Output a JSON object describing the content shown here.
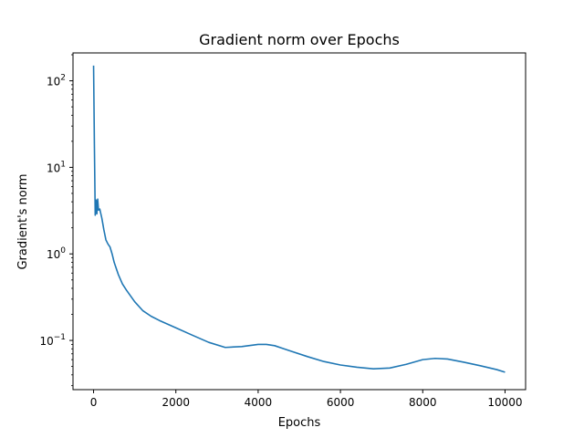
{
  "chart_data": {
    "type": "line",
    "title": "Gradient norm over Epochs",
    "xlabel": "Epochs",
    "ylabel": "Gradient's norm",
    "yscale": "log",
    "xlim": [
      -500,
      10500
    ],
    "ylim": [
      0.027,
      210
    ],
    "grid": false,
    "xticks": [
      0,
      2000,
      4000,
      6000,
      8000,
      10000
    ],
    "xtick_labels": [
      "0",
      "2000",
      "4000",
      "6000",
      "8000",
      "10000"
    ],
    "yticks": [
      0.1,
      1,
      10,
      100
    ],
    "ytick_labels": [
      {
        "base": "10",
        "exp": "−1"
      },
      {
        "base": "10",
        "exp": "0"
      },
      {
        "base": "10",
        "exp": "1"
      },
      {
        "base": "10",
        "exp": "2"
      }
    ],
    "line_color": "#1f77b4",
    "series": [
      {
        "x": [
          0,
          20,
          40,
          60,
          80,
          100,
          120,
          150,
          200,
          250,
          300,
          350,
          400,
          450,
          500,
          600,
          700,
          800,
          1000,
          1200,
          1400,
          1600,
          2000,
          2400,
          2800,
          3200,
          3600,
          4000,
          4200,
          4400,
          4800,
          5200,
          5600,
          6000,
          6400,
          6800,
          7200,
          7600,
          8000,
          8300,
          8600,
          9000,
          9400,
          9800,
          10000
        ],
        "y": [
          150,
          18,
          2.8,
          4.2,
          2.9,
          4.3,
          3.2,
          3.3,
          2.6,
          1.9,
          1.45,
          1.3,
          1.2,
          1.0,
          0.8,
          0.58,
          0.45,
          0.38,
          0.28,
          0.22,
          0.19,
          0.17,
          0.14,
          0.115,
          0.095,
          0.083,
          0.085,
          0.09,
          0.09,
          0.087,
          0.075,
          0.065,
          0.057,
          0.052,
          0.049,
          0.047,
          0.048,
          0.053,
          0.06,
          0.062,
          0.061,
          0.056,
          0.051,
          0.046,
          0.043
        ]
      }
    ]
  }
}
